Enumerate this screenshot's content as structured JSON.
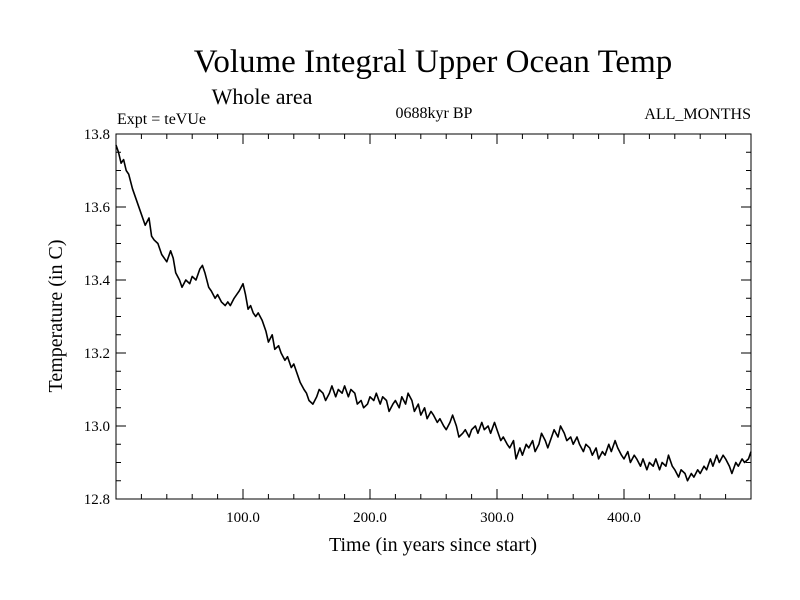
{
  "chart_data": {
    "type": "line",
    "title": "Volume Integral Upper Ocean Temp",
    "subtitle": "Whole area",
    "annotations": {
      "experiment": "Expt = teVUe",
      "period": "0688kyr BP",
      "months": "ALL_MONTHS"
    },
    "xlabel": "Time (in years since start)",
    "ylabel": "Temperature (in C)",
    "xlim": [
      0,
      500
    ],
    "ylim": [
      12.8,
      13.8
    ],
    "xticks": [
      {
        "value": 100,
        "label": "100.0"
      },
      {
        "value": 200,
        "label": "200.0"
      },
      {
        "value": 300,
        "label": "300.0"
      },
      {
        "value": 400,
        "label": "400.0"
      }
    ],
    "yticks": [
      {
        "value": 12.8,
        "label": "12.8"
      },
      {
        "value": 13.0,
        "label": "13.0"
      },
      {
        "value": 13.2,
        "label": "13.2"
      },
      {
        "value": 13.4,
        "label": "13.4"
      },
      {
        "value": 13.6,
        "label": "13.6"
      },
      {
        "value": 13.8,
        "label": "13.8"
      }
    ],
    "grid": false,
    "legend": "none",
    "series": [
      {
        "color": "#000000",
        "x": [
          0,
          2,
          4,
          6,
          8,
          10,
          13,
          16,
          20,
          23,
          26,
          28,
          30,
          33,
          36,
          40,
          43,
          45,
          47,
          50,
          52,
          55,
          58,
          60,
          63,
          66,
          68,
          70,
          73,
          75,
          78,
          80,
          83,
          86,
          88,
          90,
          93,
          95,
          97,
          100,
          102,
          104,
          106,
          108,
          110,
          112,
          115,
          118,
          120,
          123,
          125,
          128,
          130,
          133,
          135,
          138,
          140,
          142,
          145,
          148,
          150,
          152,
          155,
          158,
          160,
          163,
          165,
          168,
          170,
          173,
          175,
          178,
          180,
          183,
          185,
          188,
          190,
          193,
          195,
          198,
          200,
          203,
          205,
          208,
          210,
          213,
          215,
          218,
          220,
          223,
          225,
          228,
          230,
          233,
          235,
          238,
          240,
          243,
          245,
          248,
          250,
          253,
          255,
          258,
          260,
          263,
          265,
          268,
          270,
          273,
          275,
          278,
          280,
          283,
          285,
          288,
          290,
          293,
          295,
          298,
          300,
          303,
          305,
          308,
          310,
          313,
          315,
          318,
          320,
          323,
          325,
          328,
          330,
          333,
          335,
          338,
          340,
          343,
          345,
          348,
          350,
          353,
          355,
          358,
          360,
          363,
          365,
          368,
          370,
          373,
          375,
          378,
          380,
          383,
          385,
          388,
          390,
          393,
          395,
          398,
          400,
          403,
          405,
          408,
          410,
          413,
          415,
          418,
          420,
          423,
          425,
          428,
          430,
          433,
          435,
          438,
          440,
          443,
          445,
          448,
          450,
          453,
          455,
          458,
          460,
          463,
          465,
          468,
          470,
          473,
          475,
          478,
          480,
          483,
          485,
          488,
          490,
          493,
          495,
          498,
          500
        ],
        "y": [
          13.77,
          13.75,
          13.72,
          13.73,
          13.7,
          13.69,
          13.65,
          13.62,
          13.58,
          13.55,
          13.57,
          13.52,
          13.51,
          13.5,
          13.47,
          13.45,
          13.48,
          13.46,
          13.42,
          13.4,
          13.38,
          13.4,
          13.39,
          13.41,
          13.4,
          13.43,
          13.44,
          13.42,
          13.38,
          13.37,
          13.35,
          13.36,
          13.34,
          13.33,
          13.34,
          13.33,
          13.35,
          13.36,
          13.37,
          13.39,
          13.36,
          13.32,
          13.33,
          13.31,
          13.3,
          13.31,
          13.29,
          13.26,
          13.23,
          13.25,
          13.21,
          13.22,
          13.2,
          13.18,
          13.19,
          13.16,
          13.17,
          13.15,
          13.12,
          13.1,
          13.09,
          13.07,
          13.06,
          13.08,
          13.1,
          13.09,
          13.07,
          13.09,
          13.11,
          13.08,
          13.1,
          13.09,
          13.11,
          13.08,
          13.1,
          13.09,
          13.06,
          13.07,
          13.05,
          13.06,
          13.08,
          13.07,
          13.09,
          13.06,
          13.08,
          13.07,
          13.04,
          13.06,
          13.07,
          13.05,
          13.08,
          13.06,
          13.09,
          13.07,
          13.04,
          13.06,
          13.03,
          13.05,
          13.02,
          13.04,
          13.03,
          13.01,
          13.02,
          13.0,
          12.99,
          13.01,
          13.03,
          13.0,
          12.97,
          12.98,
          12.99,
          12.97,
          12.99,
          13.0,
          12.98,
          13.01,
          12.99,
          13.0,
          12.98,
          13.01,
          12.99,
          12.96,
          12.97,
          12.95,
          12.94,
          12.96,
          12.91,
          12.94,
          12.92,
          12.95,
          12.94,
          12.96,
          12.93,
          12.95,
          12.98,
          12.96,
          12.94,
          12.97,
          12.99,
          12.97,
          13.0,
          12.98,
          12.96,
          12.97,
          12.95,
          12.97,
          12.95,
          12.93,
          12.95,
          12.94,
          12.92,
          12.94,
          12.91,
          12.93,
          12.92,
          12.95,
          12.93,
          12.96,
          12.94,
          12.92,
          12.91,
          12.93,
          12.9,
          12.92,
          12.91,
          12.89,
          12.91,
          12.88,
          12.9,
          12.89,
          12.91,
          12.88,
          12.9,
          12.89,
          12.92,
          12.89,
          12.88,
          12.86,
          12.88,
          12.87,
          12.85,
          12.87,
          12.86,
          12.88,
          12.87,
          12.89,
          12.88,
          12.91,
          12.89,
          12.92,
          12.9,
          12.92,
          12.91,
          12.89,
          12.87,
          12.9,
          12.89,
          12.91,
          12.9,
          12.91,
          12.93
        ]
      }
    ]
  }
}
